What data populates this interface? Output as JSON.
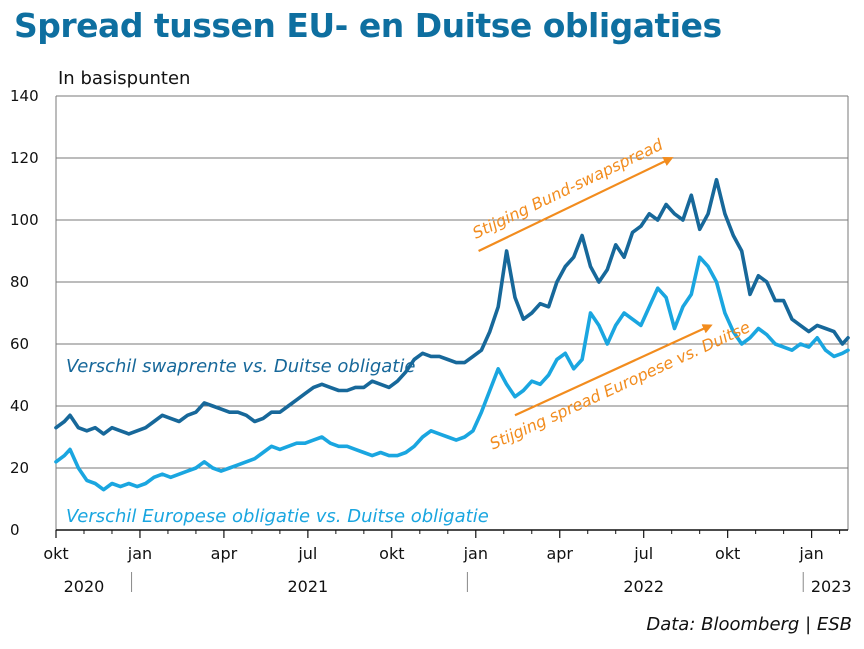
{
  "title": "Spread tussen EU- en Duitse obligaties",
  "unit_label": "In basispunten",
  "source": "Data: Bloomberg | ESB",
  "chart_data": {
    "type": "line",
    "title": "Spread tussen EU- en Duitse obligaties",
    "ylabel": "In basispunten",
    "xlabel": "",
    "ylim": [
      0,
      140
    ],
    "yticks": [
      0,
      20,
      40,
      60,
      80,
      100,
      120,
      140
    ],
    "xlim": [
      0,
      28.3
    ],
    "x_unit": "maanden sinds okt 2020",
    "month_ticks": [
      {
        "x": 0,
        "label": "okt"
      },
      {
        "x": 3,
        "label": "jan"
      },
      {
        "x": 6,
        "label": "apr"
      },
      {
        "x": 9,
        "label": "jul"
      },
      {
        "x": 12,
        "label": "okt"
      },
      {
        "x": 15,
        "label": "jan"
      },
      {
        "x": 18,
        "label": "apr"
      },
      {
        "x": 21,
        "label": "jul"
      },
      {
        "x": 24,
        "label": "okt"
      },
      {
        "x": 27,
        "label": "jan"
      }
    ],
    "year_labels": [
      {
        "x": 1.0,
        "label": "2020"
      },
      {
        "x": 9.0,
        "label": "2021"
      },
      {
        "x": 21.0,
        "label": "2022"
      },
      {
        "x": 27.7,
        "label": "2023"
      }
    ],
    "year_dividers": [
      2.7,
      14.7,
      26.7
    ],
    "grid": true,
    "series": [
      {
        "name": "Verschil swaprente vs. Duitse obligatie",
        "color": "#17689a",
        "x": [
          0,
          0.3,
          0.5,
          0.8,
          1.1,
          1.4,
          1.7,
          2.0,
          2.3,
          2.6,
          2.9,
          3.2,
          3.5,
          3.8,
          4.1,
          4.4,
          4.7,
          5.0,
          5.3,
          5.6,
          5.9,
          6.2,
          6.5,
          6.8,
          7.1,
          7.4,
          7.7,
          8.0,
          8.3,
          8.6,
          8.9,
          9.2,
          9.5,
          9.8,
          10.1,
          10.4,
          10.7,
          11.0,
          11.3,
          11.6,
          11.9,
          12.2,
          12.5,
          12.8,
          13.1,
          13.4,
          13.7,
          14.0,
          14.3,
          14.6,
          14.9,
          15.2,
          15.5,
          15.8,
          16.1,
          16.4,
          16.7,
          17.0,
          17.3,
          17.6,
          17.9,
          18.2,
          18.5,
          18.8,
          19.1,
          19.4,
          19.7,
          20.0,
          20.3,
          20.6,
          20.9,
          21.2,
          21.5,
          21.8,
          22.1,
          22.4,
          22.7,
          23.0,
          23.3,
          23.6,
          23.9,
          24.2,
          24.5,
          24.8,
          25.1,
          25.4,
          25.7,
          26.0,
          26.3,
          26.6,
          26.9,
          27.2,
          27.5,
          27.8,
          28.1,
          28.3
        ],
        "values": [
          33,
          35,
          37,
          33,
          32,
          33,
          31,
          33,
          32,
          31,
          32,
          33,
          35,
          37,
          36,
          35,
          37,
          38,
          41,
          40,
          39,
          38,
          38,
          37,
          35,
          36,
          38,
          38,
          40,
          42,
          44,
          46,
          47,
          46,
          45,
          45,
          46,
          46,
          48,
          47,
          46,
          48,
          51,
          55,
          57,
          56,
          56,
          55,
          54,
          54,
          56,
          58,
          64,
          72,
          90,
          75,
          68,
          70,
          73,
          72,
          80,
          85,
          88,
          95,
          85,
          80,
          84,
          92,
          88,
          96,
          98,
          102,
          100,
          105,
          102,
          100,
          108,
          97,
          102,
          113,
          102,
          95,
          90,
          76,
          82,
          80,
          74,
          74,
          68,
          66,
          64,
          66,
          65,
          64,
          60,
          62
        ]
      },
      {
        "name": "Verschil Europese obligatie vs. Duitse obligatie",
        "color": "#1aa6e0",
        "x": [
          0,
          0.3,
          0.5,
          0.8,
          1.1,
          1.4,
          1.7,
          2.0,
          2.3,
          2.6,
          2.9,
          3.2,
          3.5,
          3.8,
          4.1,
          4.4,
          4.7,
          5.0,
          5.3,
          5.6,
          5.9,
          6.2,
          6.5,
          6.8,
          7.1,
          7.4,
          7.7,
          8.0,
          8.3,
          8.6,
          8.9,
          9.2,
          9.5,
          9.8,
          10.1,
          10.4,
          10.7,
          11.0,
          11.3,
          11.6,
          11.9,
          12.2,
          12.5,
          12.8,
          13.1,
          13.4,
          13.7,
          14.0,
          14.3,
          14.6,
          14.9,
          15.2,
          15.5,
          15.8,
          16.1,
          16.4,
          16.7,
          17.0,
          17.3,
          17.6,
          17.9,
          18.2,
          18.5,
          18.8,
          19.1,
          19.4,
          19.7,
          20.0,
          20.3,
          20.6,
          20.9,
          21.2,
          21.5,
          21.8,
          22.1,
          22.4,
          22.7,
          23.0,
          23.3,
          23.6,
          23.9,
          24.2,
          24.5,
          24.8,
          25.1,
          25.4,
          25.7,
          26.0,
          26.3,
          26.6,
          26.9,
          27.2,
          27.5,
          27.8,
          28.1,
          28.3
        ],
        "values": [
          22,
          24,
          26,
          20,
          16,
          15,
          13,
          15,
          14,
          15,
          14,
          15,
          17,
          18,
          17,
          18,
          19,
          20,
          22,
          20,
          19,
          20,
          21,
          22,
          23,
          25,
          27,
          26,
          27,
          28,
          28,
          29,
          30,
          28,
          27,
          27,
          26,
          25,
          24,
          25,
          24,
          24,
          25,
          27,
          30,
          32,
          31,
          30,
          29,
          30,
          32,
          38,
          45,
          52,
          47,
          43,
          45,
          48,
          47,
          50,
          55,
          57,
          52,
          55,
          70,
          66,
          60,
          66,
          70,
          68,
          66,
          72,
          78,
          75,
          65,
          72,
          76,
          88,
          85,
          80,
          70,
          64,
          60,
          62,
          65,
          63,
          60,
          59,
          58,
          60,
          59,
          62,
          58,
          56,
          57,
          58
        ]
      }
    ],
    "series_labels": [
      {
        "text": "Verschil swaprente vs. Duitse obligatie",
        "series": 0
      },
      {
        "text": "Verschil Europese obligatie vs. Duitse obligatie",
        "series": 1
      }
    ],
    "annotations": [
      {
        "text": "Stijging Bund-swapspread",
        "from": [
          15.1,
          90
        ],
        "to": [
          22.0,
          120
        ]
      },
      {
        "text": "Stijging spread Europese vs. Duitse",
        "from": [
          16.4,
          37
        ],
        "to": [
          23.4,
          66
        ]
      }
    ]
  }
}
